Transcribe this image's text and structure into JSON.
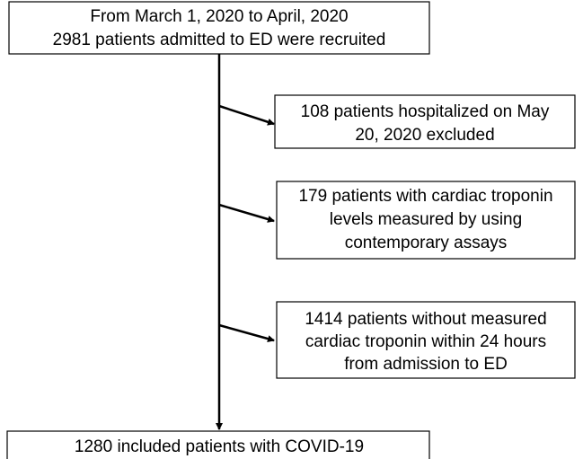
{
  "nodes": [
    {
      "lines": [
        "From March 1, 2020 to April, 2020",
        "2981 patients admitted to ED were recruited"
      ]
    },
    {
      "lines": [
        "108 patients hospitalized on May",
        "20, 2020 excluded"
      ]
    },
    {
      "lines": [
        "179 patients with cardiac troponin",
        "levels measured by using",
        "contemporary assays"
      ]
    },
    {
      "lines": [
        "1414 patients without measured",
        "cardiac troponin within 24 hours",
        "from admission to ED"
      ]
    },
    {
      "lines": [
        "1280 included patients with COVID-19"
      ]
    }
  ]
}
